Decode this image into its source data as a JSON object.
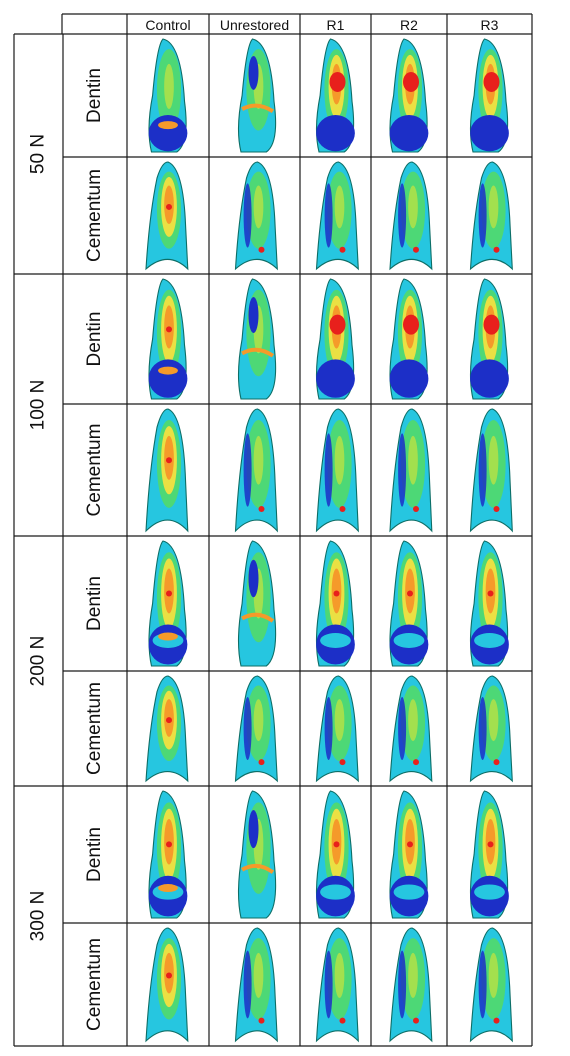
{
  "columns": [
    "Control",
    "Unrestored",
    "R1",
    "R2",
    "R3"
  ],
  "loads": [
    {
      "label": "50 N",
      "rows": [
        "Dentin",
        "Cementum"
      ]
    },
    {
      "label": "100 N",
      "rows": [
        "Dentin",
        "Cementum"
      ]
    },
    {
      "label": "200 N",
      "rows": [
        "Dentin",
        "Cementum"
      ]
    },
    {
      "label": "300 N",
      "rows": [
        "Dentin",
        "Cementum"
      ]
    }
  ],
  "colors": {
    "low": "#1c2fc7",
    "mid_low": "#26c6e0",
    "mid": "#52d96a",
    "mid_high": "#f2e040",
    "high": "#f59a2a",
    "peak": "#e8201c"
  }
}
